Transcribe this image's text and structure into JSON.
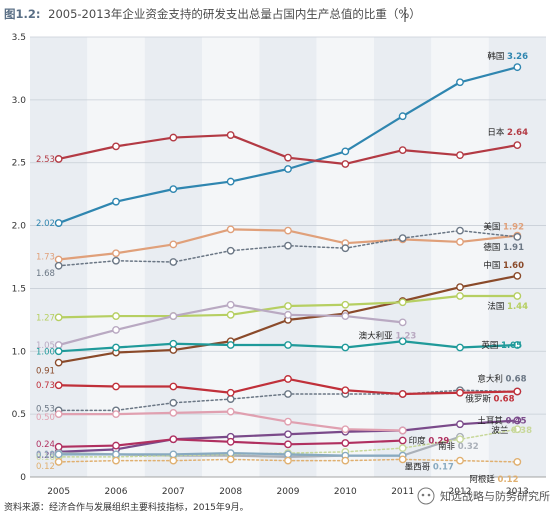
{
  "chart_data": {
    "type": "line",
    "figure_label": "图1.2:",
    "title": "2005-2013年企业资金支持的研发支出总量占国内生产总值的比重（%）",
    "x": [
      "2005",
      "2006",
      "2007",
      "2008",
      "2009",
      "2010",
      "2011",
      "2012",
      "2013"
    ],
    "ylim": [
      0,
      3.5
    ],
    "yticks": [
      "0",
      "0.5",
      "1.0",
      "1.5",
      "2.0",
      "2.5",
      "3.0",
      "3.5"
    ],
    "grid": true,
    "series": [
      {
        "name": "韩国",
        "color": "#2f86b0",
        "dash": false,
        "start_label": "2.02",
        "end_label": "3.26",
        "values": [
          2.02,
          2.19,
          2.29,
          2.35,
          2.45,
          2.59,
          2.87,
          3.14,
          3.26
        ]
      },
      {
        "name": "日本",
        "color": "#b33a44",
        "dash": false,
        "start_label": "2.53",
        "end_label": "2.64",
        "values": [
          2.53,
          2.63,
          2.7,
          2.72,
          2.54,
          2.49,
          2.6,
          2.56,
          2.64
        ]
      },
      {
        "name": "美国",
        "color": "#e0a07a",
        "dash": false,
        "start_label": "1.73",
        "end_label": "1.92",
        "values": [
          1.73,
          1.78,
          1.85,
          1.97,
          1.96,
          1.86,
          1.89,
          1.87,
          1.92
        ]
      },
      {
        "name": "德国",
        "color": "#6b7785",
        "dash": true,
        "start_label": "1.68",
        "end_label": "1.91",
        "values": [
          1.68,
          1.72,
          1.71,
          1.8,
          1.84,
          1.82,
          1.9,
          1.96,
          1.91
        ]
      },
      {
        "name": "中国",
        "color": "#8a4a2a",
        "dash": false,
        "start_label": "0.91",
        "end_label": "1.60",
        "values": [
          0.91,
          0.99,
          1.01,
          1.08,
          1.25,
          1.3,
          1.4,
          1.51,
          1.6
        ]
      },
      {
        "name": "法国",
        "color": "#b6cf62",
        "dash": false,
        "start_label": "1.27",
        "end_label": "1.44",
        "values": [
          1.27,
          1.28,
          1.28,
          1.29,
          1.36,
          1.37,
          1.39,
          1.44,
          1.44
        ]
      },
      {
        "name": "澳大利亚",
        "color": "#b9a9c2",
        "dash": false,
        "start_label": "1.05",
        "end_label": "1.23",
        "values": [
          1.05,
          1.17,
          1.28,
          1.37,
          1.29,
          1.28,
          1.23,
          null,
          null
        ]
      },
      {
        "name": "英国",
        "color": "#1f9a9a",
        "dash": false,
        "start_label": "1.00",
        "end_label": "1.05",
        "values": [
          1.0,
          1.03,
          1.06,
          1.05,
          1.05,
          1.03,
          1.08,
          1.03,
          1.05
        ]
      },
      {
        "name": "意大利",
        "color": "#6b7785",
        "dash": true,
        "start_label": "0.53",
        "end_label": "0.68",
        "values": [
          0.53,
          0.53,
          0.59,
          0.62,
          0.66,
          0.66,
          0.66,
          0.69,
          0.68
        ]
      },
      {
        "name": "俄罗斯",
        "color": "#c0303a",
        "dash": false,
        "start_label": "0.73",
        "end_label": "0.68",
        "values": [
          0.73,
          0.72,
          0.72,
          0.67,
          0.78,
          0.69,
          0.66,
          0.67,
          0.68
        ]
      },
      {
        "name": "土耳其",
        "color": "#7a4a8a",
        "dash": false,
        "start_label": "0.20",
        "end_label": "0.45",
        "values": [
          0.2,
          0.22,
          0.3,
          0.32,
          0.34,
          0.36,
          0.37,
          0.42,
          0.45
        ]
      },
      {
        "name": "",
        "color": "#e0a0b0",
        "dash": false,
        "start_label": "0.50",
        "end_label": "",
        "values": [
          0.5,
          0.5,
          0.51,
          0.52,
          0.44,
          0.38,
          0.37,
          null,
          null
        ]
      },
      {
        "name": "印度",
        "color": "#b03060",
        "dash": false,
        "start_label": "0.24",
        "end_label": "0.29",
        "values": [
          0.24,
          0.25,
          0.3,
          0.28,
          0.26,
          0.27,
          0.29,
          null,
          null
        ]
      },
      {
        "name": "南非",
        "color": "#aab0b8",
        "dash": false,
        "start_label": "0.19",
        "end_label": "0.32",
        "values": [
          0.19,
          0.18,
          0.17,
          0.17,
          0.16,
          0.17,
          0.17,
          0.32,
          null
        ]
      },
      {
        "name": "波兰",
        "color": "#c8d89a",
        "dash": true,
        "start_label": "0.16",
        "end_label": "0.38",
        "values": [
          0.16,
          0.16,
          0.17,
          0.18,
          0.19,
          0.2,
          0.23,
          0.3,
          0.38
        ]
      },
      {
        "name": "墨西哥",
        "color": "#88aac0",
        "dash": false,
        "start_label": "0.18",
        "end_label": "0.17",
        "values": [
          0.18,
          0.18,
          0.18,
          0.19,
          0.18,
          0.17,
          0.17,
          null,
          null
        ]
      },
      {
        "name": "阿根廷",
        "color": "#e0b070",
        "dash": true,
        "start_label": "0.12",
        "end_label": "0.12",
        "values": [
          0.12,
          0.13,
          0.13,
          0.14,
          0.13,
          0.13,
          0.14,
          0.13,
          0.12
        ]
      }
    ]
  },
  "source_note": "资料来源：经济合作与发展组织主要科技指标，2015年9月。",
  "watermark": "知远战略与防务研究所"
}
